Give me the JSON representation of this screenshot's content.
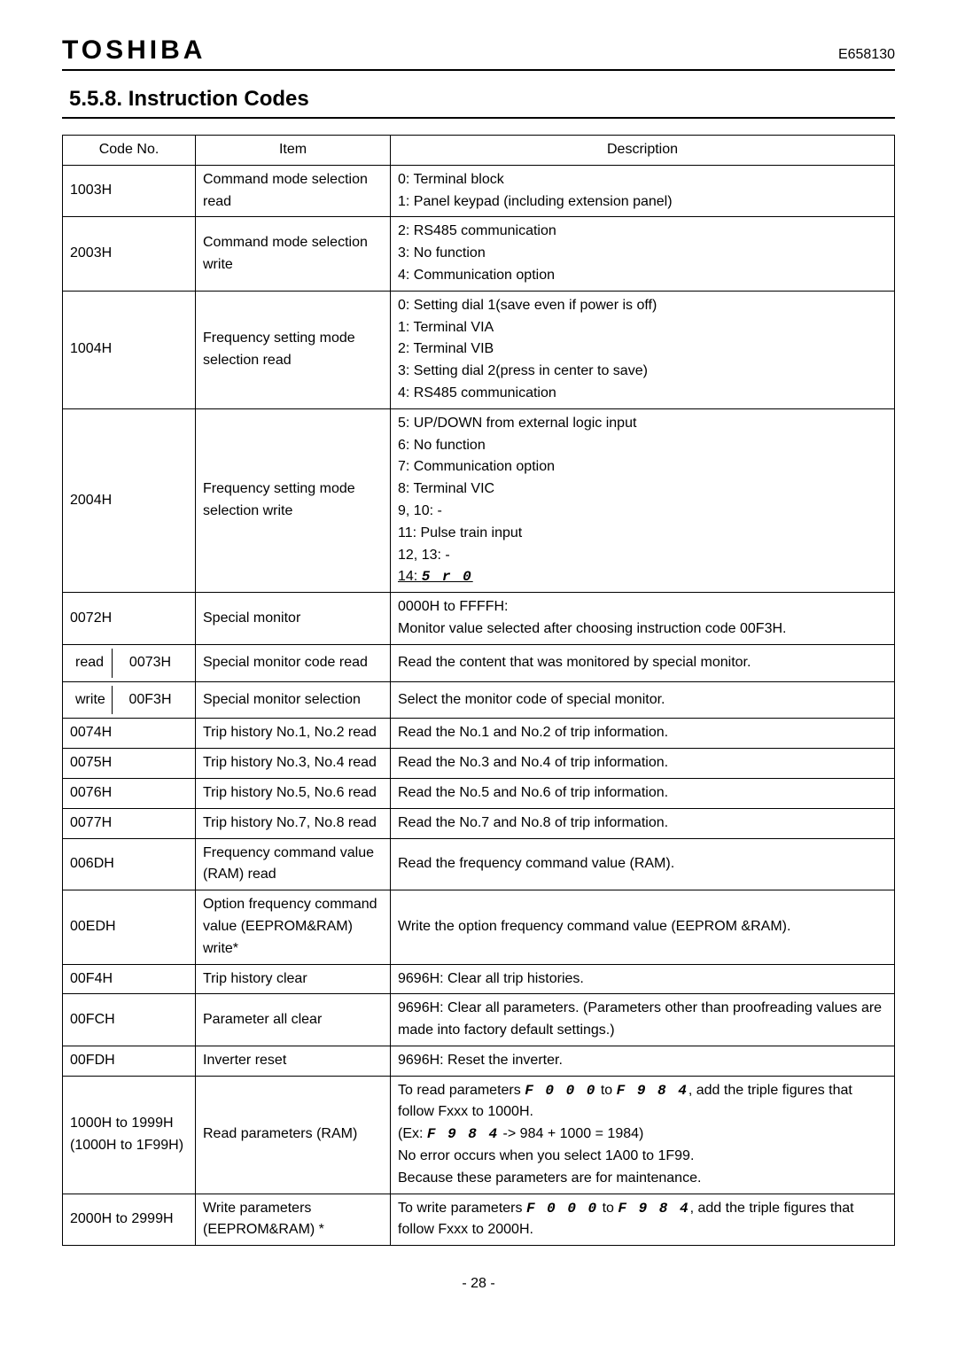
{
  "header": {
    "brand": "TOSHIBA",
    "docnum": "E658130"
  },
  "section_title": "5.5.8. Instruction Codes",
  "table": {
    "head": {
      "code": "Code No.",
      "item": "Item",
      "desc": "Description"
    },
    "groups": [
      {
        "pair": true,
        "codeA": "1003H",
        "itemA": "Command mode selection read",
        "codeB": "2003H",
        "itemB": "Command mode selection write",
        "linesA": [
          "0: Terminal block",
          "1: Panel keypad (including extension panel)"
        ],
        "linesMid": [
          "2: RS485 communication"
        ],
        "linesB": [
          "3: No function",
          "4: Communication option"
        ]
      },
      {
        "pair": true,
        "codeA": "1004H",
        "itemA": "Frequency setting mode selection read",
        "codeB": "2004H",
        "itemB": "Frequency setting mode selection write",
        "linesA": [
          "0: Setting dial 1(save even if power is off)",
          "1: Terminal VIA",
          "2: Terminal VIB",
          "3: Setting dial 2(press in center to save)",
          "4: RS485 communication"
        ],
        "linesMid": [
          "5: UP/DOWN from external logic input"
        ],
        "linesB": [
          "6: No function",
          "7: Communication option",
          "8: Terminal VIC",
          "9, 10: -",
          "11: Pulse train input",
          "12, 13: -"
        ],
        "line14_prefix": "14: ",
        "line14_seg": "5 r 0"
      },
      {
        "code": "0072H",
        "item": "Special monitor",
        "desc": [
          "0000H to FFFFH:",
          "Monitor value selected after choosing instruction code 00F3H."
        ]
      },
      {
        "split": true,
        "left": "read",
        "right": "0073H",
        "item": "Special monitor code read",
        "desc": [
          "Read the content that was monitored by special monitor."
        ]
      },
      {
        "split": true,
        "left": "write",
        "right": "00F3H",
        "item": "Special monitor selection",
        "desc": [
          "Select the monitor code of special monitor."
        ]
      },
      {
        "code": "0074H",
        "item": "Trip history No.1, No.2 read",
        "desc": [
          "Read the No.1 and No.2 of trip information."
        ]
      },
      {
        "code": "0075H",
        "item": "Trip history No.3, No.4 read",
        "desc": [
          "Read the No.3 and No.4 of trip information."
        ]
      },
      {
        "code": "0076H",
        "item": "Trip history No.5, No.6 read",
        "desc": [
          "Read the No.5 and No.6 of trip information."
        ]
      },
      {
        "code": "0077H",
        "item": "Trip history No.7, No.8 read",
        "desc": [
          "Read the No.7 and No.8 of trip information."
        ]
      },
      {
        "code": "006DH",
        "item": "Frequency command value (RAM) read",
        "desc": [
          "Read the frequency command value (RAM)."
        ]
      },
      {
        "code": "00EDH",
        "item": "Option frequency command value (EEPROM&RAM) write*",
        "desc": [
          "Write the option frequency command value (EEPROM &RAM)."
        ]
      },
      {
        "code": "00F4H",
        "item": "Trip history clear",
        "desc": [
          "9696H: Clear all trip histories."
        ]
      },
      {
        "code": "00FCH",
        "item": "Parameter all clear",
        "desc": [
          "9696H: Clear all parameters. (Parameters other than proofreading values are made into factory default settings.)"
        ]
      },
      {
        "code": "00FDH",
        "item": "Inverter reset",
        "desc": [
          "9696H: Reset the inverter."
        ]
      },
      {
        "code": "1000H to 1999H (1000H to 1F99H)",
        "codeSub": "(1000H to 1F99H)",
        "codeMain": "1000H to 1999H",
        "item": "Read parameters (RAM)",
        "descRich": true,
        "d1_a": "To read parameters ",
        "d1_seg1": "F 0 0 0",
        "d1_b": " to ",
        "d1_seg2": "F 9 8 4",
        "d1_c": ", add the triple figures that follow Fxxx to 1000H.",
        "d2_a": " (Ex: ",
        "d2_seg": "F 9 8 4",
        "d2_b": " -> 984 + 1000 = 1984)",
        "d3": "No error occurs when you select 1A00 to 1F99.",
        "d4": "Because these parameters are for maintenance."
      },
      {
        "code": "2000H to 2999H",
        "item": "Write parameters (EEPROM&RAM) *",
        "descRich2": true,
        "e1_a": "To write parameters ",
        "e1_seg1": "F 0 0 0",
        "e1_b": " to ",
        "e1_seg2": "F 9 8 4",
        "e1_c": ", add the triple figures that follow Fxxx to 2000H."
      }
    ]
  },
  "pagenum": "- 28 -",
  "style": {
    "body_font_size": 16,
    "title_font_size": 24,
    "brand_font_size": 30,
    "border_color": "#000000",
    "bg": "#ffffff",
    "text": "#000000",
    "col_code_width": 150,
    "col_item_width": 220,
    "line_height": 1.55
  }
}
